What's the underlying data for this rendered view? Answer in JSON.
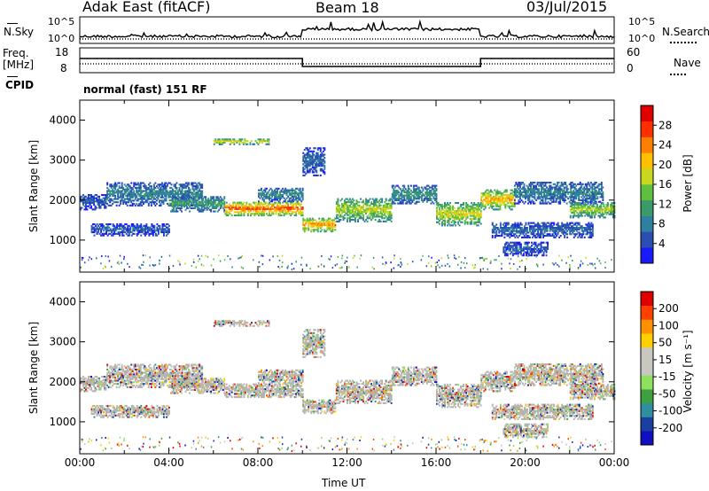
{
  "header": {
    "title": "Adak East (fitACF)",
    "beam": "Beam 18",
    "date": "03/Jul/2015"
  },
  "left_labels": {
    "nsky": "N.Sky",
    "freq": "Freq.",
    "mhz": "[MHz]",
    "cpid": "CPID"
  },
  "right_labels": {
    "nsearch": "N.Search",
    "nave": "Nave"
  },
  "panel_ticks": {
    "nsky_left_top": "10^5",
    "nsky_left_bottom": "10^0",
    "nsky_right_top": "10^5",
    "nsky_right_bottom": "10^0",
    "freq_left_top": "18",
    "freq_left_bottom": "8",
    "nave_right_top": "60",
    "nave_right_bottom": "0"
  },
  "cpid_text": "normal (fast) 151 RF",
  "colors": {
    "power_scale": [
      "#1a1aff",
      "#2a4fb0",
      "#2e7fa0",
      "#3a9a6a",
      "#5fc040",
      "#c8d820",
      "#ffc000",
      "#ff7f00",
      "#ff3000",
      "#e00000"
    ],
    "velocity_scale": [
      "#e00000",
      "#ff4000",
      "#ff9000",
      "#ffd000",
      "#c8c8c0",
      "#c8c8c0",
      "#90e060",
      "#3fa040",
      "#2f8fa0",
      "#1a3fa0",
      "#1010c0"
    ],
    "ground_scatter": "#b4b4ac"
  },
  "chart_data": [
    {
      "type": "heatmap",
      "name": "power",
      "ylabel": "Slant Range [km]",
      "yticks": [
        "1000",
        "2000",
        "3000",
        "4000"
      ],
      "ylim": [
        200,
        4500
      ],
      "xlim": [
        0,
        24
      ],
      "colorbar_label": "Power [dB]",
      "colorbar_ticks": [
        "4",
        "8",
        "12",
        "16",
        "20",
        "24",
        "28"
      ],
      "colorbar_range": [
        0,
        32
      ],
      "bands": [
        {
          "t0": 0.0,
          "t1": 1.2,
          "r0": 1750,
          "r1": 2150,
          "level": 6
        },
        {
          "t0": 0.5,
          "t1": 4.0,
          "r0": 1100,
          "r1": 1400,
          "level": 6
        },
        {
          "t0": 1.2,
          "t1": 5.5,
          "r0": 1850,
          "r1": 2450,
          "level": 9
        },
        {
          "t0": 4.0,
          "t1": 6.5,
          "r0": 1700,
          "r1": 2100,
          "level": 12
        },
        {
          "t0": 6.0,
          "t1": 8.5,
          "r0": 3380,
          "r1": 3520,
          "level": 20
        },
        {
          "t0": 6.5,
          "t1": 10.0,
          "r0": 1600,
          "r1": 1950,
          "level": 27
        },
        {
          "t0": 8.0,
          "t1": 10.0,
          "r0": 1950,
          "r1": 2300,
          "level": 10
        },
        {
          "t0": 10.0,
          "t1": 11.5,
          "r0": 1200,
          "r1": 1550,
          "level": 24
        },
        {
          "t0": 10.0,
          "t1": 11.0,
          "r0": 2600,
          "r1": 3300,
          "level": 7
        },
        {
          "t0": 11.5,
          "t1": 14.0,
          "r0": 1450,
          "r1": 2050,
          "level": 18
        },
        {
          "t0": 14.0,
          "t1": 16.0,
          "r0": 1900,
          "r1": 2350,
          "level": 11
        },
        {
          "t0": 16.0,
          "t1": 18.0,
          "r0": 1350,
          "r1": 1950,
          "level": 19
        },
        {
          "t0": 18.0,
          "t1": 19.5,
          "r0": 1750,
          "r1": 2250,
          "level": 22
        },
        {
          "t0": 19.5,
          "t1": 23.5,
          "r0": 1900,
          "r1": 2450,
          "level": 9
        },
        {
          "t0": 18.5,
          "t1": 23.0,
          "r0": 1050,
          "r1": 1450,
          "level": 7
        },
        {
          "t0": 19.0,
          "t1": 21.0,
          "r0": 600,
          "r1": 950,
          "level": 6
        },
        {
          "t0": 22.0,
          "t1": 24.0,
          "r0": 1550,
          "r1": 1950,
          "level": 17
        }
      ]
    },
    {
      "type": "heatmap",
      "name": "velocity",
      "ylabel": "Slant Range [km]",
      "yticks": [
        "1000",
        "2000",
        "3000",
        "4000"
      ],
      "ylim": [
        200,
        4500
      ],
      "xlim": [
        0,
        24
      ],
      "xlabel": "Time UT",
      "xticks": [
        "00:00",
        "04:00",
        "08:00",
        "12:00",
        "16:00",
        "20:00",
        "00:00"
      ],
      "colorbar_label": "Velocity [m s⁻¹]",
      "colorbar_ticks": [
        "200",
        "100",
        "50",
        "15",
        "-15",
        "-50",
        "-100",
        "-200"
      ],
      "colorbar_range": [
        -250,
        250
      ]
    }
  ]
}
